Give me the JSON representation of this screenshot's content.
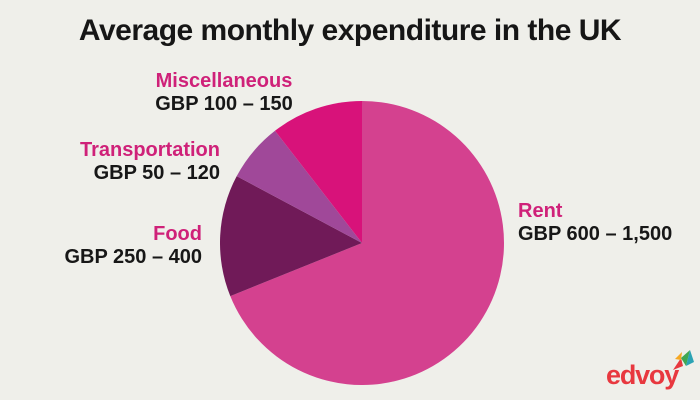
{
  "title": "Average monthly expenditure in the UK",
  "chart_data": {
    "type": "pie",
    "title": "Average monthly expenditure in the UK",
    "direction": "clockwise",
    "start_angle_deg": 0,
    "currency": "GBP",
    "slices": [
      {
        "label": "Rent",
        "range_text": "GBP 600 – 1,500",
        "range_gbp": [
          600,
          1500
        ],
        "percent": 68.9,
        "color": "#d4418f"
      },
      {
        "label": "Food",
        "range_text": "GBP 250 – 400",
        "range_gbp": [
          250,
          400
        ],
        "percent": 13.9,
        "color": "#701a58"
      },
      {
        "label": "Transportation",
        "range_text": "GBP 50 – 120",
        "range_gbp": [
          50,
          120
        ],
        "percent": 6.7,
        "color": "#a04899"
      },
      {
        "label": "Miscellaneous",
        "range_text": "GBP 100 – 150",
        "range_gbp": [
          100,
          150
        ],
        "percent": 10.5,
        "color": "#d8127a"
      }
    ],
    "legend_position": "labels-around-pie"
  },
  "branding": {
    "logo_text": "edvoy",
    "logo_color": "#e8383f",
    "arrow_colors": [
      "#e8383f",
      "#f6a823",
      "#41a751",
      "#2ba3b4"
    ]
  },
  "colors": {
    "background": "#efefea",
    "title_text": "#161616",
    "category_label": "#cf2179",
    "value_text": "#171717"
  }
}
